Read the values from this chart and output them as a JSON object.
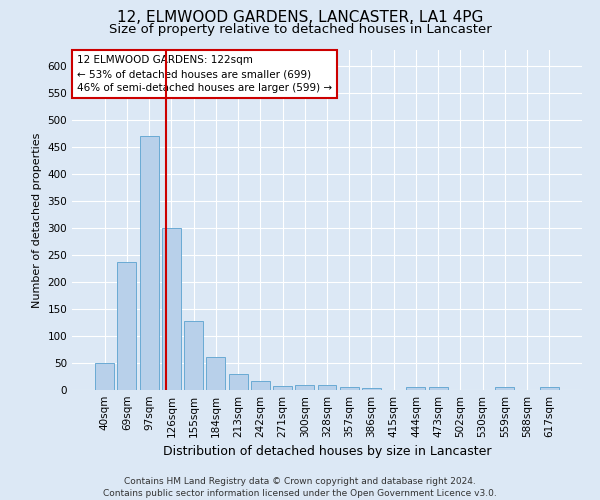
{
  "title1": "12, ELMWOOD GARDENS, LANCASTER, LA1 4PG",
  "title2": "Size of property relative to detached houses in Lancaster",
  "xlabel": "Distribution of detached houses by size in Lancaster",
  "ylabel": "Number of detached properties",
  "categories": [
    "40sqm",
    "69sqm",
    "97sqm",
    "126sqm",
    "155sqm",
    "184sqm",
    "213sqm",
    "242sqm",
    "271sqm",
    "300sqm",
    "328sqm",
    "357sqm",
    "386sqm",
    "415sqm",
    "444sqm",
    "473sqm",
    "502sqm",
    "530sqm",
    "559sqm",
    "588sqm",
    "617sqm"
  ],
  "values": [
    50,
    237,
    470,
    300,
    128,
    62,
    30,
    17,
    8,
    10,
    10,
    6,
    3,
    0,
    5,
    5,
    0,
    0,
    5,
    0,
    5
  ],
  "bar_color": "#b8d0ea",
  "bar_edge_color": "#6aaad4",
  "vline_color": "#cc0000",
  "annotation_text": "12 ELMWOOD GARDENS: 122sqm\n← 53% of detached houses are smaller (699)\n46% of semi-detached houses are larger (599) →",
  "annotation_box_color": "#ffffff",
  "annotation_box_edge": "#cc0000",
  "ylim": [
    0,
    630
  ],
  "yticks": [
    0,
    50,
    100,
    150,
    200,
    250,
    300,
    350,
    400,
    450,
    500,
    550,
    600
  ],
  "background_color": "#dce8f5",
  "plot_bg_color": "#dce8f5",
  "footer": "Contains HM Land Registry data © Crown copyright and database right 2024.\nContains public sector information licensed under the Open Government Licence v3.0.",
  "title1_fontsize": 11,
  "title2_fontsize": 9.5,
  "xlabel_fontsize": 9,
  "ylabel_fontsize": 8,
  "tick_fontsize": 7.5,
  "footer_fontsize": 6.5
}
